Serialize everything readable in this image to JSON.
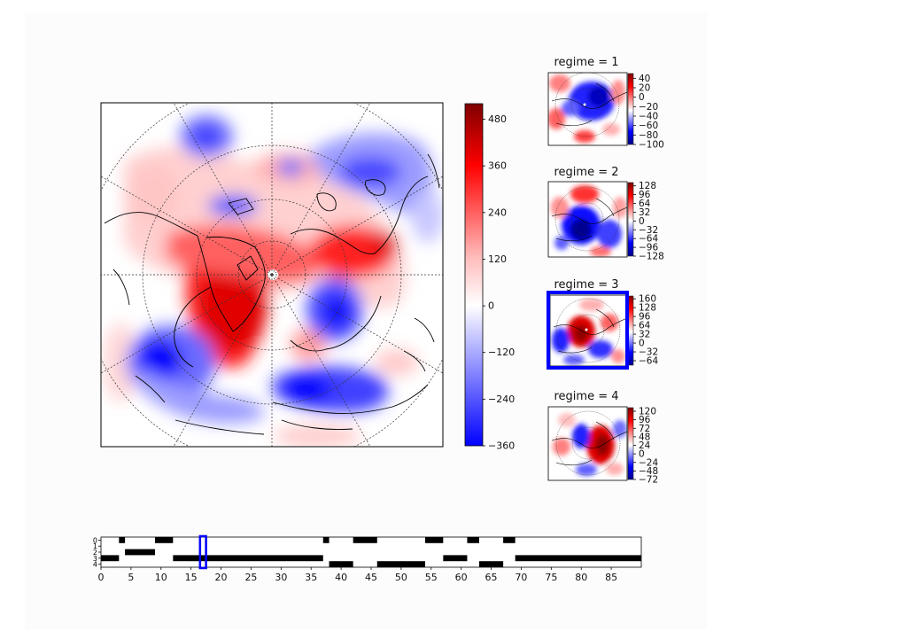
{
  "chart_data": [
    {
      "type": "heatmap",
      "name": "main-anomaly-map",
      "title": "",
      "projection": "north-polar-stereographic",
      "colorbar": {
        "ticks": [
          "480",
          "360",
          "240",
          "120",
          "0",
          "−120",
          "−240",
          "−360"
        ],
        "tick_values": [
          480,
          360,
          240,
          120,
          0,
          -120,
          -240,
          -360
        ],
        "range": [
          -360,
          520
        ]
      },
      "colormap": [
        "#0000ff",
        "#ffffff",
        "#ff0000",
        "#7f0000"
      ]
    },
    {
      "type": "heatmap",
      "name": "regime-1",
      "title": "regime = 1",
      "selected": false,
      "colorbar": {
        "ticks": [
          "40",
          "20",
          "0",
          "−20",
          "−40",
          "−60",
          "−80",
          "−100"
        ],
        "tick_values": [
          40,
          20,
          0,
          -20,
          -40,
          -60,
          -80,
          -100
        ],
        "range": [
          -100,
          50
        ]
      }
    },
    {
      "type": "heatmap",
      "name": "regime-2",
      "title": "regime = 2",
      "selected": false,
      "colorbar": {
        "ticks": [
          "128",
          "96",
          "64",
          "32",
          "0",
          "−32",
          "−64",
          "−96",
          "−128"
        ],
        "tick_values": [
          128,
          96,
          64,
          32,
          0,
          -32,
          -64,
          -96,
          -128
        ],
        "range": [
          -128,
          140
        ]
      }
    },
    {
      "type": "heatmap",
      "name": "regime-3",
      "title": "regime = 3",
      "selected": true,
      "colorbar": {
        "ticks": [
          "160",
          "128",
          "96",
          "64",
          "32",
          "0",
          "−32",
          "−64"
        ],
        "tick_values": [
          160,
          128,
          96,
          64,
          32,
          0,
          -32,
          -64
        ],
        "range": [
          -80,
          170
        ]
      }
    },
    {
      "type": "heatmap",
      "name": "regime-4",
      "title": "regime = 4",
      "selected": false,
      "colorbar": {
        "ticks": [
          "120",
          "96",
          "72",
          "48",
          "24",
          "0",
          "−24",
          "−48",
          "−72"
        ],
        "tick_values": [
          120,
          96,
          72,
          48,
          24,
          0,
          -24,
          -48,
          -72
        ],
        "range": [
          -72,
          130
        ]
      }
    },
    {
      "type": "heatmap",
      "name": "regime-timeline",
      "xlabel": "",
      "ylabel": "",
      "xlim": [
        0,
        90
      ],
      "x_ticks": [
        "0",
        "5",
        "10",
        "15",
        "20",
        "25",
        "30",
        "35",
        "40",
        "45",
        "50",
        "55",
        "60",
        "65",
        "70",
        "75",
        "80",
        "85"
      ],
      "x_tick_values": [
        0,
        5,
        10,
        15,
        20,
        25,
        30,
        35,
        40,
        45,
        50,
        55,
        60,
        65,
        70,
        75,
        80,
        85
      ],
      "y_ticks": [
        "0",
        "1",
        "2",
        "3",
        "4"
      ],
      "y_tick_values": [
        0,
        1,
        2,
        3,
        4
      ],
      "highlight_day": 17,
      "segments": [
        {
          "regime": 0,
          "start": 3,
          "end": 4
        },
        {
          "regime": 0,
          "start": 9,
          "end": 12
        },
        {
          "regime": 0,
          "start": 37,
          "end": 38
        },
        {
          "regime": 0,
          "start": 42,
          "end": 46
        },
        {
          "regime": 0,
          "start": 54,
          "end": 57
        },
        {
          "regime": 0,
          "start": 61,
          "end": 63
        },
        {
          "regime": 0,
          "start": 67,
          "end": 69
        },
        {
          "regime": 2,
          "start": 4,
          "end": 9
        },
        {
          "regime": 3,
          "start": 0,
          "end": 3
        },
        {
          "regime": 3,
          "start": 12,
          "end": 37
        },
        {
          "regime": 3,
          "start": 57,
          "end": 61
        },
        {
          "regime": 3,
          "start": 69,
          "end": 90
        },
        {
          "regime": 4,
          "start": 38,
          "end": 42
        },
        {
          "regime": 4,
          "start": 46,
          "end": 54
        },
        {
          "regime": 4,
          "start": 63,
          "end": 67
        }
      ]
    }
  ],
  "colors": {
    "highlight": "#0000ff",
    "blue": "#0000ff",
    "red": "#ff0000",
    "darkred": "#7f0000"
  }
}
